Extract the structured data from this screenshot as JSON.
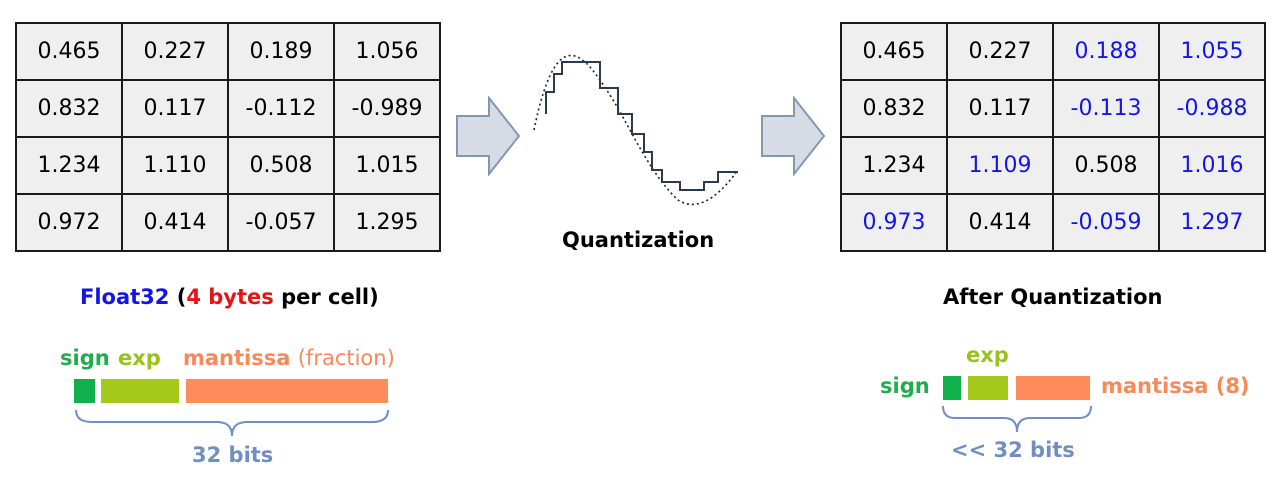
{
  "left_table": {
    "rows": [
      [
        {
          "v": "0.465",
          "changed": false
        },
        {
          "v": "0.227",
          "changed": false
        },
        {
          "v": "0.189",
          "changed": false
        },
        {
          "v": "1.056",
          "changed": false
        }
      ],
      [
        {
          "v": "0.832",
          "changed": false
        },
        {
          "v": "0.117",
          "changed": false
        },
        {
          "v": "-0.112",
          "changed": false
        },
        {
          "v": "-0.989",
          "changed": false
        }
      ],
      [
        {
          "v": "1.234",
          "changed": false
        },
        {
          "v": "1.110",
          "changed": false
        },
        {
          "v": "0.508",
          "changed": false
        },
        {
          "v": "1.015",
          "changed": false
        }
      ],
      [
        {
          "v": "0.972",
          "changed": false
        },
        {
          "v": "0.414",
          "changed": false
        },
        {
          "v": "-0.057",
          "changed": false
        },
        {
          "v": "1.295",
          "changed": false
        }
      ]
    ]
  },
  "right_table": {
    "rows": [
      [
        {
          "v": "0.465",
          "changed": false
        },
        {
          "v": "0.227",
          "changed": false
        },
        {
          "v": "0.188",
          "changed": true
        },
        {
          "v": "1.055",
          "changed": true
        }
      ],
      [
        {
          "v": "0.832",
          "changed": false
        },
        {
          "v": "0.117",
          "changed": false
        },
        {
          "v": "-0.113",
          "changed": true
        },
        {
          "v": "-0.988",
          "changed": true
        }
      ],
      [
        {
          "v": "1.234",
          "changed": false
        },
        {
          "v": "1.109",
          "changed": true
        },
        {
          "v": "0.508",
          "changed": false
        },
        {
          "v": "1.016",
          "changed": true
        }
      ],
      [
        {
          "v": "0.973",
          "changed": true
        },
        {
          "v": "0.414",
          "changed": false
        },
        {
          "v": "-0.059",
          "changed": true
        },
        {
          "v": "1.297",
          "changed": true
        }
      ]
    ]
  },
  "middle": {
    "label": "Quantization"
  },
  "left_caption": {
    "float": "Float32",
    "open": "(",
    "num": "4",
    "bytes": "bytes",
    "rest": "per cell)"
  },
  "right_caption": {
    "title": "After Quantization"
  },
  "left_bits": {
    "sign": "sign",
    "exp": "exp",
    "mantissa": "mantissa",
    "fraction": "(fraction)",
    "total": "32 bits"
  },
  "right_bits": {
    "sign": "sign",
    "exp": "exp",
    "mantissa": "mantissa (8)",
    "total": "<< 32 bits"
  },
  "colors": {
    "changed_value": "#1414e6",
    "sign": "#11b04c",
    "exp": "#a4c81c",
    "mantissa": "#ff8c5a",
    "brace": "#6f8fc4",
    "arrow_fill": "#d6dce5",
    "arrow_stroke": "#8497b0"
  }
}
